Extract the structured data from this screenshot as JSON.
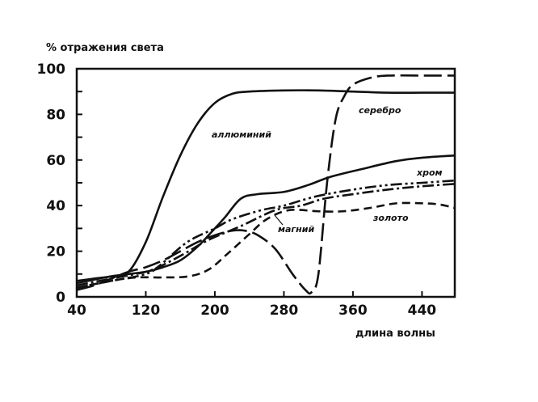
{
  "chart_data": {
    "type": "line",
    "title": "",
    "ylabel": "% отражения света",
    "xlabel": "длина волны",
    "xlim": [
      40,
      478
    ],
    "ylim": [
      0,
      100
    ],
    "xticks": [
      40,
      120,
      200,
      280,
      360,
      440
    ],
    "yticks": [
      0,
      20,
      40,
      60,
      80,
      100
    ],
    "grid": false,
    "legend": "inline labels",
    "series": [
      {
        "name": "аллюминий",
        "style": "solid",
        "x": [
          40,
          60,
          80,
          100,
          120,
          140,
          160,
          180,
          200,
          220,
          240,
          280,
          320,
          360,
          400,
          440,
          478
        ],
        "y": [
          7,
          8,
          9,
          11,
          24,
          44,
          62,
          76,
          85,
          89,
          90,
          90.5,
          90.5,
          90,
          89.5,
          89.5,
          89.5
        ]
      },
      {
        "name": "серебро",
        "style": "long-dash",
        "x": [
          40,
          60,
          80,
          100,
          120,
          140,
          160,
          180,
          200,
          220,
          235,
          250,
          270,
          290,
          305,
          312,
          320,
          330,
          340,
          350,
          360,
          380,
          400,
          440,
          478
        ],
        "y": [
          3,
          5,
          8,
          11,
          13,
          16,
          20,
          24,
          27,
          29,
          29,
          27,
          21,
          10,
          3,
          2,
          10,
          50,
          78,
          88,
          93,
          96,
          97,
          97,
          97
        ]
      },
      {
        "name": "хром",
        "style": "solid",
        "x": [
          40,
          80,
          120,
          140,
          160,
          180,
          200,
          212,
          230,
          249,
          280,
          308,
          333,
          370,
          410,
          440,
          478
        ],
        "y": [
          6,
          9,
          11,
          13,
          16,
          22,
          30,
          35,
          43,
          45,
          46,
          49,
          52.5,
          56,
          59.5,
          61,
          62
        ]
      },
      {
        "name": "магний",
        "style": "dash-dot-dot",
        "x": [
          40,
          80,
          120,
          137,
          168,
          200,
          220,
          254,
          280,
          317,
          360,
          400,
          440,
          478
        ],
        "y": [
          4,
          7,
          10,
          14,
          24,
          30,
          34,
          38,
          40,
          44,
          47,
          49,
          50,
          51
        ]
      },
      {
        "name": "",
        "style": "dash-dot",
        "x": [
          40,
          80,
          120,
          140,
          165,
          193,
          230,
          270,
          300,
          326,
          360,
          400,
          440,
          478
        ],
        "y": [
          5,
          8,
          11,
          14,
          19,
          25,
          31,
          38,
          40,
          43,
          45,
          47,
          48.5,
          49.5
        ]
      },
      {
        "name": "золото",
        "style": "short-dash",
        "x": [
          40,
          80,
          109,
          140,
          170,
          193,
          215,
          240,
          260,
          286,
          320,
          348,
          380,
          410,
          441,
          460,
          478
        ],
        "y": [
          4,
          7,
          8.5,
          8.5,
          9,
          12,
          19,
          27.5,
          34,
          38,
          37.5,
          37.5,
          39,
          41,
          41,
          40.5,
          39
        ]
      }
    ]
  }
}
